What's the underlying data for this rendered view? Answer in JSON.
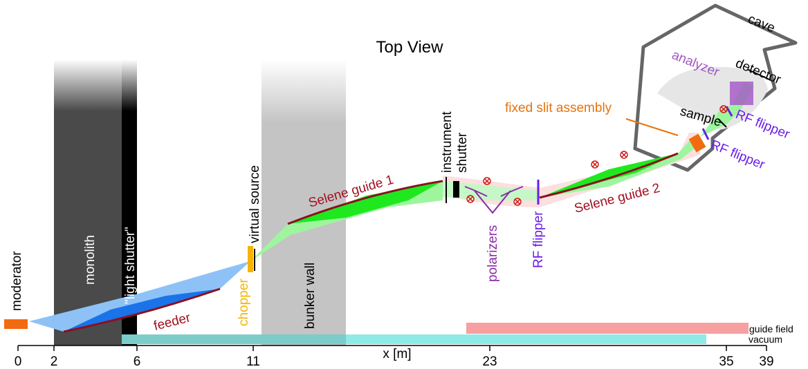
{
  "title": "Top View",
  "axis": {
    "label": "x [m]",
    "ticks": [
      "0",
      "2",
      "6",
      "11",
      "23",
      "35",
      "39"
    ]
  },
  "labels": {
    "moderator": "moderator",
    "monolith": "monolith",
    "light_shutter": "\"light shutter\"",
    "feeder": "feeder",
    "chopper": "chopper",
    "virtual_source": "virtual source",
    "bunker_wall": "bunker wall",
    "selene_guide_1": "Selene guide 1",
    "instrument_shutter_1": "instrument",
    "instrument_shutter_2": "shutter",
    "polarizers": "polarizers",
    "rf_flipper_main": "RF flipper",
    "selene_guide_2": "Selene guide 2",
    "fixed_slit_assembly": "fixed slit assembly",
    "rf_flipper_slit": "RF flipper",
    "rf_flipper_sample": "RF flipper",
    "sample": "sample",
    "analyzer": "analyzer",
    "detector": "detector",
    "cave": "cave",
    "guide_field": "guide field",
    "vacuum": "vacuum"
  },
  "colors": {
    "monolith": "#4a4a4a",
    "bunker_wall": "#c4c4c4",
    "light_shutter": "#000000",
    "moderator": "#f26b10",
    "chopper": "#f5b400",
    "feeder_beam": "#8ec2f7",
    "feeder_guide": "#1a73e8",
    "green_beam": "#9ef59e",
    "green_guide": "#1fe81f",
    "guide_edge": "#8b1020",
    "field_region": "#fbe0e0",
    "guide_field_bar": "#f7a0a0",
    "vacuum_bar": "#8eeae6",
    "rf_flipper": "#6a1ee8",
    "polarizers": "#8a2aa8",
    "slit_label": "#e8720c",
    "analyzer": "#a255c6",
    "cave_wall": "#666666",
    "cave_floor": "#e6e6e6"
  }
}
